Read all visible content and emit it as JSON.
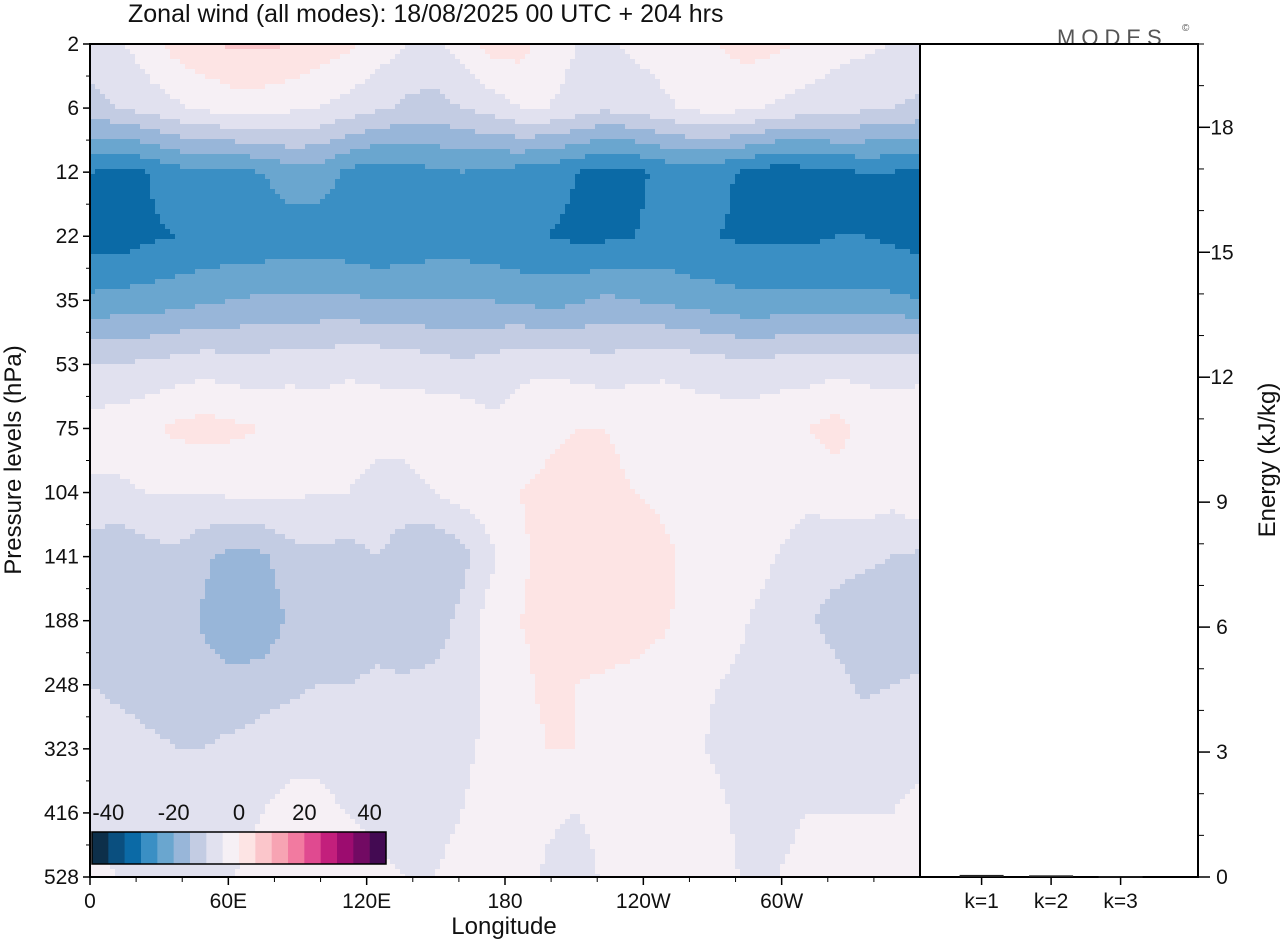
{
  "chart_data": {
    "type": "heatmap",
    "title": "Zonal wind (all modes):  18/08/2025  00 UTC  + 204 hrs",
    "brand": "MODES",
    "brand_mark": "©",
    "xlabel": "Longitude",
    "ylabel": "Pressure levels (hPa)",
    "y2label": "Energy (kJ/kg)",
    "x_ticks": [
      "0",
      "60E",
      "120E",
      "180",
      "120W",
      "60W"
    ],
    "y_ticks": [
      "2",
      "6",
      "12",
      "22",
      "35",
      "53",
      "75",
      "104",
      "141",
      "188",
      "248",
      "323",
      "416",
      "528"
    ],
    "energy_ticks": [
      0,
      3,
      6,
      9,
      12,
      15,
      18
    ],
    "energy_ylim": [
      0,
      20
    ],
    "energy_bars": [
      {
        "label": "k=1",
        "value": 0.05
      },
      {
        "label": "k=2",
        "value": 0.04
      },
      {
        "label": "k=3",
        "value": 0.02
      }
    ],
    "colorbar": {
      "tick_labels": [
        "-40",
        "-20",
        "0",
        "20",
        "40"
      ],
      "range": [
        -45,
        45
      ],
      "colors": [
        "#0d2f4a",
        "#0a4f7f",
        "#0b6aa6",
        "#3a8fc4",
        "#6aa6cf",
        "#98b6d9",
        "#c3cce3",
        "#e1e1ef",
        "#f6f0f5",
        "#fde4e4",
        "#fbc6cb",
        "#f7a4b3",
        "#f27aa0",
        "#e04a90",
        "#c31f7c",
        "#9c0c6f",
        "#720a63",
        "#430a52"
      ]
    },
    "grid": "z[i][j]: zonal wind (m/s), rows = pressure levels 2 to 528 hPa, columns = longitude 0 to 360 (eastward), approximate",
    "z": [
      [
        -7,
        -6,
        -2,
        2,
        4,
        6,
        6,
        5,
        3,
        1,
        -2,
        -5,
        -6,
        -3,
        2,
        2,
        -2,
        -5,
        -6,
        -4,
        -3,
        -2,
        0,
        2,
        1,
        -1,
        -3,
        -4,
        -5,
        -6
      ],
      [
        -12,
        -10,
        -8,
        -6,
        -4,
        -3,
        -3,
        -4,
        -5,
        -7,
        -9,
        -11,
        -12,
        -10,
        -8,
        -5,
        -5,
        -7,
        -9,
        -8,
        -6,
        -4,
        -3,
        -4,
        -6,
        -7,
        -8,
        -9,
        -10,
        -11
      ],
      [
        -30,
        -32,
        -30,
        -27,
        -26,
        -26,
        -25,
        -22,
        -22,
        -26,
        -28,
        -27,
        -26,
        -25,
        -26,
        -27,
        -28,
        -30,
        -32,
        -31,
        -29,
        -28,
        -29,
        -31,
        -33,
        -32,
        -31,
        -30,
        -30,
        -31
      ],
      [
        -32,
        -33,
        -31,
        -30,
        -29,
        -29,
        -29,
        -28,
        -28,
        -29,
        -30,
        -29,
        -28,
        -28,
        -29,
        -30,
        -30,
        -31,
        -31,
        -30,
        -29,
        -30,
        -30,
        -31,
        -31,
        -31,
        -30,
        -30,
        -31,
        -32
      ],
      [
        -24,
        -23,
        -23,
        -22,
        -21,
        -20,
        -19,
        -19,
        -19,
        -19,
        -20,
        -20,
        -20,
        -20,
        -20,
        -21,
        -22,
        -21,
        -19,
        -20,
        -21,
        -22,
        -23,
        -24,
        -24,
        -24,
        -24,
        -24,
        -24,
        -25
      ],
      [
        -10,
        -10,
        -9,
        -8,
        -7,
        -8,
        -8,
        -7,
        -7,
        -6,
        -6,
        -7,
        -8,
        -9,
        -8,
        -6,
        -6,
        -7,
        -8,
        -7,
        -6,
        -7,
        -8,
        -9,
        -8,
        -8,
        -7,
        -7,
        -7,
        -7
      ],
      [
        -3,
        -2,
        -1,
        1,
        2,
        1,
        0,
        -1,
        -2,
        -2,
        -3,
        -2,
        -1,
        -1,
        -4,
        -3,
        -1,
        0,
        0,
        -1,
        -2,
        -2,
        -2,
        -2,
        -1,
        0,
        2,
        -1,
        -2,
        -1
      ],
      [
        -6,
        -6,
        -5,
        -5,
        -5,
        -4,
        -4,
        -4,
        -5,
        -5,
        -7,
        -8,
        -5,
        -3,
        -2,
        0,
        1,
        2,
        1,
        0,
        -1,
        -1,
        -2,
        -3,
        -3,
        -4,
        -3,
        -2,
        -3,
        0
      ],
      [
        -13,
        -14,
        -12,
        -11,
        -14,
        -17,
        -16,
        -12,
        -11,
        -12,
        -10,
        -12,
        -15,
        -12,
        -6,
        -1,
        2,
        3,
        5,
        4,
        1,
        -1,
        -3,
        -4,
        -5,
        -7,
        -8,
        -9,
        -10,
        -11
      ],
      [
        -15,
        -15,
        -13,
        -12,
        -16,
        -20,
        -19,
        -14,
        -13,
        -15,
        -12,
        -15,
        -14,
        -8,
        -3,
        0,
        1,
        2,
        4,
        3,
        1,
        -2,
        -3,
        -5,
        -6,
        -9,
        -12,
        -13,
        -14,
        -15
      ],
      [
        -10,
        -11,
        -12,
        -12,
        -12,
        -13,
        -12,
        -11,
        -10,
        -10,
        -9,
        -9,
        -8,
        -7,
        -4,
        -1,
        1,
        0,
        -1,
        -2,
        -3,
        -4,
        -5,
        -6,
        -7,
        -7,
        -8,
        -11,
        -10,
        -9
      ],
      [
        -7,
        -8,
        -9,
        -10,
        -10,
        -9,
        -8,
        -7,
        -6,
        -7,
        -8,
        -9,
        -8,
        -6,
        -4,
        -2,
        0,
        0,
        -1,
        -2,
        -3,
        -4,
        -6,
        -8,
        -7,
        -6,
        -6,
        -7,
        -7,
        -6
      ],
      [
        -6,
        -7,
        -9,
        -10,
        -9,
        -7,
        -5,
        -3,
        -4,
        -5,
        -6,
        -7,
        -7,
        -5,
        -3,
        -2,
        -4,
        -5,
        -3,
        -1,
        0,
        -2,
        -4,
        -7,
        -6,
        -5,
        -5,
        -5,
        -5,
        -4
      ],
      [
        -4,
        -5,
        -6,
        -8,
        -7,
        -5,
        -3,
        -2,
        -2,
        -3,
        -4,
        -5,
        -5,
        -3,
        -1,
        -3,
        -6,
        -8,
        -4,
        -1,
        -1,
        -2,
        -3,
        -6,
        -5,
        -4,
        -4,
        -4,
        -4,
        -4
      ]
    ]
  }
}
